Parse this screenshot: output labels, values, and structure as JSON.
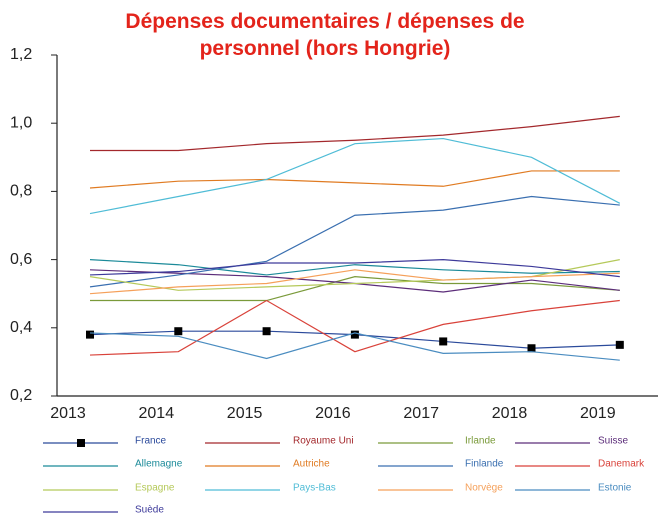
{
  "chart_data": {
    "type": "line",
    "title": "Dépenses documentaires / dépenses de personnel (hors Hongrie)",
    "categories": [
      "2013",
      "2014",
      "2015",
      "2016",
      "2017",
      "2018",
      "2019"
    ],
    "ylim": [
      0.2,
      1.2
    ],
    "yticks": [
      {
        "value": 0.2,
        "label": "0,2"
      },
      {
        "value": 0.4,
        "label": "0,4"
      },
      {
        "value": 0.6,
        "label": "0,6"
      },
      {
        "value": 0.8,
        "label": "0,8"
      },
      {
        "value": 1.0,
        "label": "1,0"
      },
      {
        "value": 1.2,
        "label": "1,2"
      }
    ],
    "series": [
      {
        "name": "France",
        "color": "#2b4a9b",
        "marker": "square",
        "values": [
          0.38,
          0.39,
          0.39,
          0.38,
          0.36,
          0.34,
          0.35
        ]
      },
      {
        "name": "Royaume Uni",
        "color": "#a3282c",
        "values": [
          0.92,
          0.92,
          0.94,
          0.95,
          0.965,
          0.99,
          1.02
        ]
      },
      {
        "name": "Irlande",
        "color": "#7a9a3a",
        "values": [
          0.48,
          0.48,
          0.48,
          0.55,
          0.53,
          0.53,
          0.51
        ]
      },
      {
        "name": "Suisse",
        "color": "#5c2d7a",
        "values": [
          0.57,
          0.56,
          0.55,
          0.53,
          0.505,
          0.54,
          0.51
        ]
      },
      {
        "name": "Allemagne",
        "color": "#1b8a99",
        "values": [
          0.6,
          0.585,
          0.555,
          0.585,
          0.57,
          0.56,
          0.565
        ]
      },
      {
        "name": "Autriche",
        "color": "#e07b22",
        "values": [
          0.81,
          0.83,
          0.835,
          0.825,
          0.815,
          0.86,
          0.86
        ]
      },
      {
        "name": "Finlande",
        "color": "#3a6fb0",
        "values": [
          0.52,
          0.555,
          0.595,
          0.73,
          0.745,
          0.785,
          0.76
        ]
      },
      {
        "name": "Danemark",
        "color": "#d9423a",
        "values": [
          0.32,
          0.33,
          0.48,
          0.33,
          0.41,
          0.45,
          0.48
        ]
      },
      {
        "name": "Espagne",
        "color": "#b5c95a",
        "values": [
          0.55,
          0.51,
          0.52,
          0.53,
          0.54,
          0.55,
          0.6
        ]
      },
      {
        "name": "Pays-Bas",
        "color": "#4fbcd6",
        "values": [
          0.735,
          0.785,
          0.835,
          0.94,
          0.955,
          0.9,
          0.765
        ]
      },
      {
        "name": "Norvège",
        "color": "#f5a05a",
        "values": [
          0.5,
          0.52,
          0.53,
          0.57,
          0.54,
          0.55,
          0.56
        ]
      },
      {
        "name": "Estonie",
        "color": "#4a8cc0",
        "values": [
          0.385,
          0.375,
          0.31,
          0.385,
          0.325,
          0.33,
          0.305
        ]
      },
      {
        "name": "Suède",
        "color": "#3d3a9a",
        "values": [
          0.555,
          0.565,
          0.59,
          0.59,
          0.6,
          0.58,
          0.55
        ]
      }
    ]
  }
}
